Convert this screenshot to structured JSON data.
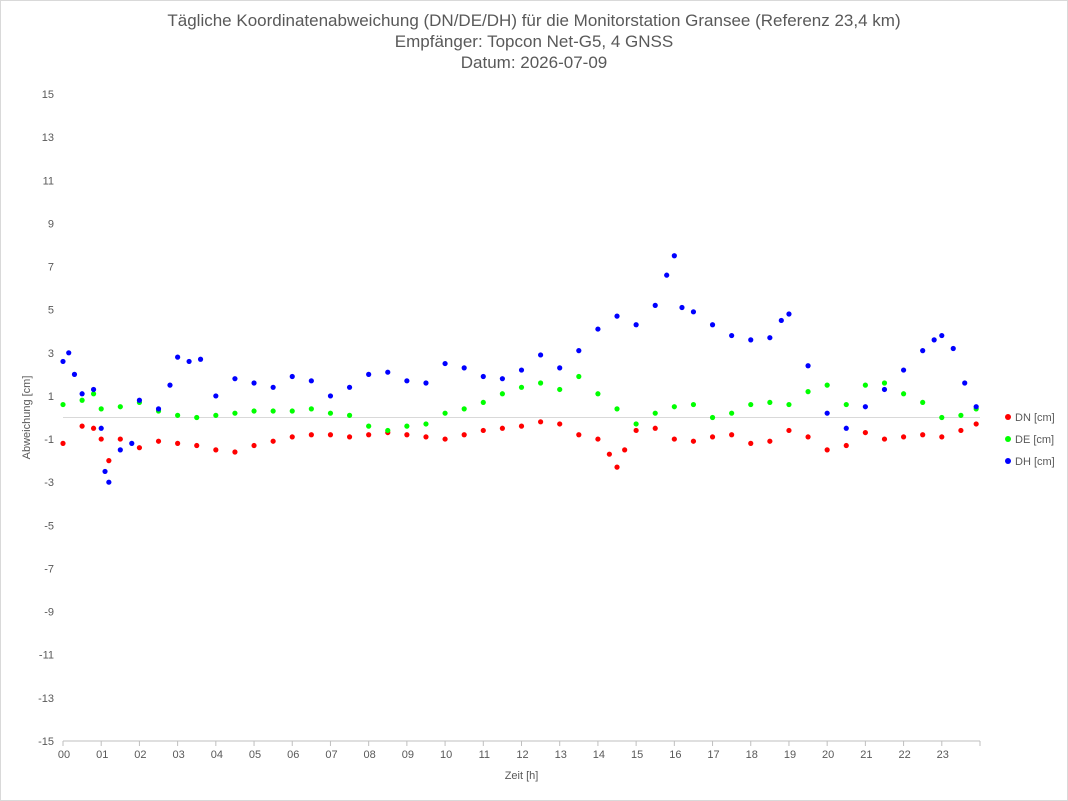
{
  "chart_data": {
    "type": "scatter",
    "title": "Tägliche Koordinatenabweichung (DN/DE/DH) für die Monitorstation Gransee (Referenz 23,4 km)",
    "subtitle": "Empfänger: Topcon Net-G5, 4 GNSS",
    "date_line": "Datum: 2026-07-09",
    "xlabel": "Zeit [h]",
    "ylabel": "Abweichung [cm]",
    "xlim": [
      0,
      24
    ],
    "ylim": [
      -15,
      15
    ],
    "x_tick_labels": [
      "00",
      "01",
      "02",
      "03",
      "04",
      "05",
      "06",
      "07",
      "08",
      "09",
      "10",
      "11",
      "12",
      "13",
      "14",
      "15",
      "16",
      "17",
      "18",
      "19",
      "20",
      "21",
      "22",
      "23"
    ],
    "y_ticks": [
      15,
      13,
      11,
      9,
      7,
      5,
      3,
      1,
      -1,
      -3,
      -5,
      -7,
      -9,
      -11,
      -13,
      -15
    ],
    "y_tick_labels": [
      "15",
      "13",
      "11",
      "9",
      "7",
      "5",
      "3",
      "1",
      "-1",
      "-3",
      "-5",
      "-7",
      "-9",
      "-11",
      "-13",
      "-15"
    ],
    "grid": "horizontal zero line only",
    "legend_position": "right",
    "series": [
      {
        "name": "DN [cm]",
        "color": "#ff0000",
        "x": [
          0.0,
          0.5,
          0.8,
          1.0,
          1.2,
          1.5,
          2.0,
          2.5,
          3.0,
          3.5,
          4.0,
          4.5,
          5.0,
          5.5,
          6.0,
          6.5,
          7.0,
          7.5,
          8.0,
          8.5,
          9.0,
          9.5,
          10.0,
          10.5,
          11.0,
          11.5,
          12.0,
          12.5,
          13.0,
          13.5,
          14.0,
          14.3,
          14.5,
          14.7,
          15.0,
          15.5,
          16.0,
          16.5,
          17.0,
          17.5,
          18.0,
          18.5,
          19.0,
          19.5,
          20.0,
          20.5,
          21.0,
          21.5,
          22.0,
          22.5,
          23.0,
          23.5,
          23.9
        ],
        "y": [
          -1.2,
          -0.4,
          -0.5,
          -1.0,
          -2.0,
          -1.0,
          -1.4,
          -1.1,
          -1.2,
          -1.3,
          -1.5,
          -1.6,
          -1.3,
          -1.1,
          -0.9,
          -0.8,
          -0.8,
          -0.9,
          -0.8,
          -0.7,
          -0.8,
          -0.9,
          -1.0,
          -0.8,
          -0.6,
          -0.5,
          -0.4,
          -0.2,
          -0.3,
          -0.8,
          -1.0,
          -1.7,
          -2.3,
          -1.5,
          -0.6,
          -0.5,
          -1.0,
          -1.1,
          -0.9,
          -0.8,
          -1.2,
          -1.1,
          -0.6,
          -0.9,
          -1.5,
          -1.3,
          -0.7,
          -1.0,
          -0.9,
          -0.8,
          -0.9,
          -0.6,
          -0.3
        ]
      },
      {
        "name": "DE [cm]",
        "color": "#00ff00",
        "x": [
          0.0,
          0.5,
          0.8,
          1.0,
          1.5,
          2.0,
          2.5,
          3.0,
          3.5,
          4.0,
          4.5,
          5.0,
          5.5,
          6.0,
          6.5,
          7.0,
          7.5,
          8.0,
          8.5,
          9.0,
          9.5,
          10.0,
          10.5,
          11.0,
          11.5,
          12.0,
          12.5,
          13.0,
          13.5,
          14.0,
          14.5,
          15.0,
          15.5,
          16.0,
          16.5,
          17.0,
          17.5,
          18.0,
          18.5,
          19.0,
          19.5,
          20.0,
          20.5,
          21.0,
          21.5,
          22.0,
          22.5,
          23.0,
          23.5,
          23.9
        ],
        "y": [
          0.6,
          0.8,
          1.1,
          0.4,
          0.5,
          0.7,
          0.3,
          0.1,
          0.0,
          0.1,
          0.2,
          0.3,
          0.3,
          0.3,
          0.4,
          0.2,
          0.1,
          -0.4,
          -0.6,
          -0.4,
          -0.3,
          0.2,
          0.4,
          0.7,
          1.1,
          1.4,
          1.6,
          1.3,
          1.9,
          1.1,
          0.4,
          -0.3,
          0.2,
          0.5,
          0.6,
          0.0,
          0.2,
          0.6,
          0.7,
          0.6,
          1.2,
          1.5,
          0.6,
          1.5,
          1.6,
          1.1,
          0.7,
          0.0,
          0.1,
          0.4
        ]
      },
      {
        "name": "DH [cm]",
        "color": "#0000ff",
        "x": [
          0.0,
          0.15,
          0.3,
          0.5,
          0.8,
          1.0,
          1.1,
          1.2,
          1.5,
          1.8,
          2.0,
          2.5,
          2.8,
          3.0,
          3.3,
          3.6,
          4.0,
          4.5,
          5.0,
          5.5,
          6.0,
          6.5,
          7.0,
          7.5,
          8.0,
          8.5,
          9.0,
          9.5,
          10.0,
          10.5,
          11.0,
          11.5,
          12.0,
          12.5,
          13.0,
          13.5,
          14.0,
          14.5,
          15.0,
          15.5,
          15.8,
          16.0,
          16.2,
          16.5,
          17.0,
          17.5,
          18.0,
          18.5,
          18.8,
          19.0,
          19.5,
          20.0,
          20.5,
          21.0,
          21.5,
          22.0,
          22.5,
          22.8,
          23.0,
          23.3,
          23.6,
          23.9
        ],
        "y": [
          2.6,
          3.0,
          2.0,
          1.1,
          1.3,
          -0.5,
          -2.5,
          -3.0,
          -1.5,
          -1.2,
          0.8,
          0.4,
          1.5,
          2.8,
          2.6,
          2.7,
          1.0,
          1.8,
          1.6,
          1.4,
          1.9,
          1.7,
          1.0,
          1.4,
          2.0,
          2.1,
          1.7,
          1.6,
          2.5,
          2.3,
          1.9,
          1.8,
          2.2,
          2.9,
          2.3,
          3.1,
          4.1,
          4.7,
          4.3,
          5.2,
          6.6,
          7.5,
          5.1,
          4.9,
          4.3,
          3.8,
          3.6,
          3.7,
          4.5,
          4.8,
          2.4,
          0.2,
          -0.5,
          0.5,
          1.3,
          2.2,
          3.1,
          3.6,
          3.8,
          3.2,
          1.6,
          0.5
        ]
      }
    ]
  }
}
